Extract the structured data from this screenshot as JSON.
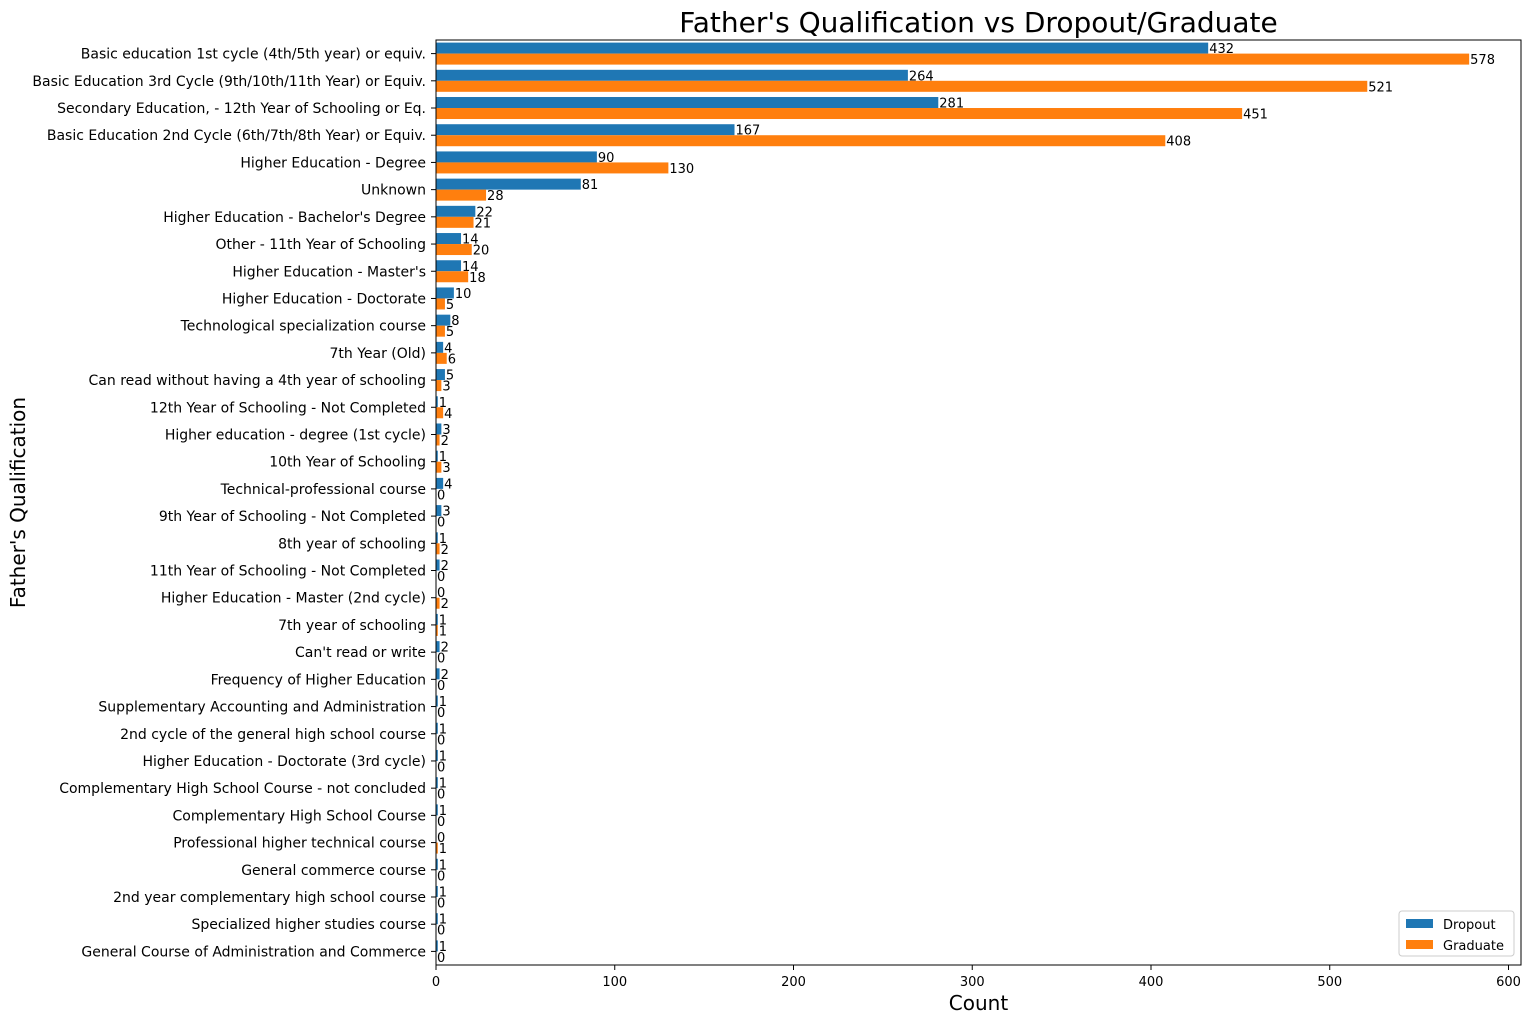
{
  "chart_data": {
    "type": "bar",
    "orientation": "horizontal",
    "title": "Father's Qualification vs Dropout/Graduate",
    "xlabel": "Count",
    "ylabel": "Father's Qualification",
    "xlim": [
      0,
      607
    ],
    "xticks": [
      0,
      100,
      200,
      300,
      400,
      500,
      600
    ],
    "grid": false,
    "legend_position": "lower-right",
    "categories": [
      "Basic education 1st cycle (4th/5th year) or equiv.",
      "Basic Education 3rd Cycle (9th/10th/11th Year) or Equiv.",
      "Secondary Education, - 12th Year of Schooling or Eq.",
      "Basic Education 2nd Cycle (6th/7th/8th Year) or Equiv.",
      "Higher Education - Degree",
      "Unknown",
      "Higher Education - Bachelor's Degree",
      "Other - 11th Year of Schooling",
      "Higher Education - Master's",
      "Higher Education - Doctorate",
      "Technological specialization course",
      "7th Year (Old)",
      "Can read without having a 4th year of schooling",
      "12th Year of Schooling - Not Completed",
      "Higher education - degree (1st cycle)",
      "10th Year of Schooling",
      "Technical-professional course",
      "9th Year of Schooling - Not Completed",
      "8th year of schooling",
      "11th Year of Schooling - Not Completed",
      "Higher Education - Master (2nd cycle)",
      "7th year of schooling",
      "Can't read or write",
      "Frequency of Higher Education",
      "Supplementary Accounting and Administration",
      "2nd cycle of the general high school course",
      "Higher Education - Doctorate (3rd cycle)",
      "Complementary High School Course - not concluded",
      "Complementary High School Course",
      "Professional higher technical course",
      "General commerce course",
      "2nd year complementary high school course",
      "Specialized higher studies course",
      "General Course of Administration and Commerce"
    ],
    "series": [
      {
        "name": "Dropout",
        "color": "#1f77b4",
        "values": [
          432,
          264,
          281,
          167,
          90,
          81,
          22,
          14,
          14,
          10,
          8,
          4,
          5,
          1,
          3,
          1,
          4,
          3,
          1,
          2,
          0,
          1,
          2,
          2,
          1,
          1,
          1,
          1,
          1,
          0,
          1,
          1,
          1,
          1
        ]
      },
      {
        "name": "Graduate",
        "color": "#ff7f0e",
        "values": [
          578,
          521,
          451,
          408,
          130,
          28,
          21,
          20,
          18,
          5,
          5,
          6,
          3,
          4,
          2,
          3,
          0,
          0,
          2,
          0,
          2,
          1,
          0,
          0,
          0,
          0,
          0,
          0,
          0,
          1,
          0,
          0,
          0,
          0
        ]
      }
    ]
  }
}
